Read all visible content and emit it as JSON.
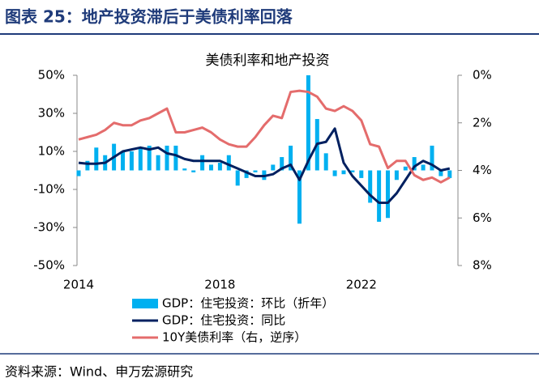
{
  "title": "图表 25：地产投资滞后于美债利率回落",
  "source": "资料来源：Wind、申万宏源研究",
  "chart_data": {
    "type": "bar",
    "title": "美债利率和地产投资",
    "categories": [
      "2014",
      null,
      null,
      null,
      null,
      null,
      null,
      null,
      null,
      null,
      null,
      null,
      null,
      null,
      null,
      null,
      "2018",
      null,
      null,
      null,
      null,
      null,
      null,
      null,
      null,
      null,
      null,
      null,
      null,
      null,
      null,
      null,
      "2022",
      null,
      null,
      null,
      null,
      null,
      null,
      null,
      null,
      null,
      null
    ],
    "series": [
      {
        "name": "GDP：住宅投资：环比（折年）",
        "type": "bar",
        "color": "#00b0f0",
        "values": [
          -3,
          5,
          12,
          8,
          14,
          10,
          10,
          12,
          13,
          8,
          13,
          13,
          1,
          -1,
          8,
          3,
          4,
          8,
          -8,
          -4,
          -1,
          -5,
          3,
          7,
          13,
          -28,
          50,
          27,
          9,
          -3,
          -2,
          -1,
          -4,
          -17,
          -27,
          -25,
          -5,
          2,
          7,
          3,
          13,
          -3,
          -4
        ]
      },
      {
        "name": "GDP：住宅投资：同比",
        "type": "line",
        "color": "#002060",
        "values": [
          4,
          3.5,
          3.5,
          4,
          7,
          10,
          11,
          12,
          11,
          12,
          9,
          8,
          6,
          5,
          5,
          5,
          5,
          3,
          1,
          -1,
          -3,
          -3,
          -2,
          1,
          3,
          -5,
          5,
          14,
          15,
          22,
          4,
          -3,
          -8,
          -13,
          -17,
          -17,
          -12,
          -5,
          2,
          5,
          3,
          0,
          1
        ]
      },
      {
        "name": "10Y美债利率（右，逆序）",
        "type": "line",
        "axis": "y2",
        "color": "#e46c6c",
        "values": [
          2.7,
          2.6,
          2.5,
          2.3,
          2.0,
          2.1,
          2.1,
          1.9,
          1.8,
          1.6,
          1.4,
          2.4,
          2.4,
          2.3,
          2.2,
          2.4,
          2.7,
          2.9,
          3.0,
          3.0,
          2.6,
          2.1,
          1.7,
          1.8,
          0.7,
          0.65,
          0.7,
          0.9,
          1.4,
          1.5,
          1.3,
          1.5,
          1.9,
          2.9,
          3.0,
          3.9,
          3.6,
          3.6,
          4.2,
          4.4,
          4.3,
          4.5,
          4.3
        ]
      }
    ],
    "ylim": [
      -50,
      50
    ],
    "yticks": [
      {
        "value": -50,
        "label": "-50%"
      },
      {
        "value": -30,
        "label": "-30%"
      },
      {
        "value": -10,
        "label": "-10%"
      },
      {
        "value": 10,
        "label": "10%"
      },
      {
        "value": 30,
        "label": "30%"
      },
      {
        "value": 50,
        "label": "50%"
      }
    ],
    "y2lim": [
      0,
      8
    ],
    "y2_inverted": true,
    "y2ticks": [
      {
        "value": 0,
        "label": "0%"
      },
      {
        "value": 2,
        "label": "2%"
      },
      {
        "value": 4,
        "label": "4%"
      },
      {
        "value": 6,
        "label": "6%"
      },
      {
        "value": 8,
        "label": "8%"
      }
    ]
  }
}
